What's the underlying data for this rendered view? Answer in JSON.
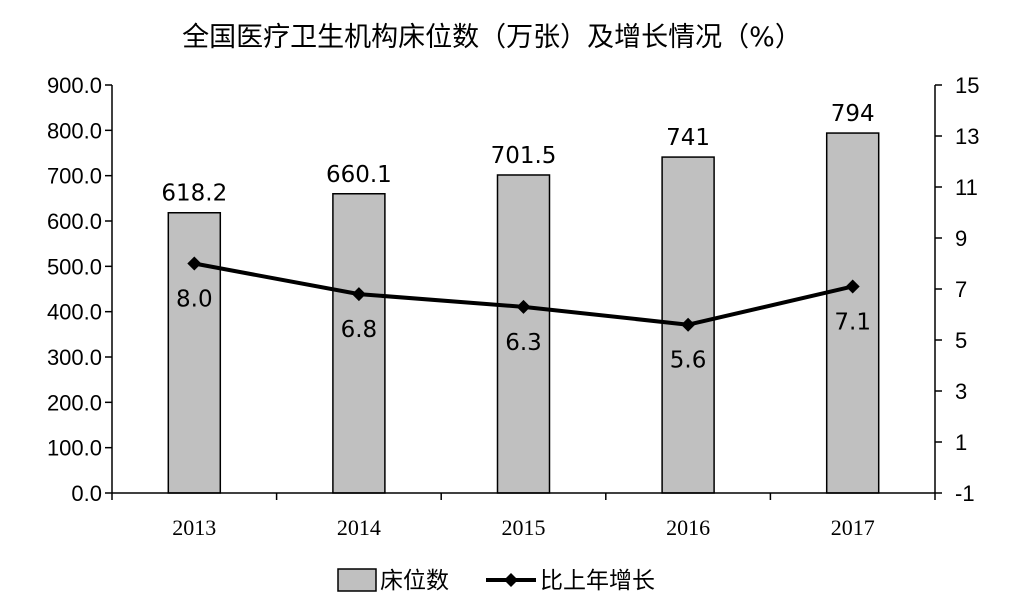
{
  "chart_data": {
    "type": "bar",
    "title": "全国医疗卫生机构床位数（万张）及增长情况（%）",
    "categories": [
      "2013",
      "2014",
      "2015",
      "2016",
      "2017"
    ],
    "series": [
      {
        "name": "床位数",
        "type": "bar",
        "axis": "left",
        "values": [
          618.2,
          660.1,
          701.5,
          741,
          794
        ],
        "labels": [
          "618.2",
          "660.1",
          "701.5",
          "741",
          "794"
        ],
        "color": "#c0c0c0"
      },
      {
        "name": "比上年增长",
        "type": "line",
        "axis": "right",
        "marker": "diamond",
        "values": [
          8.0,
          6.8,
          6.3,
          5.6,
          7.1
        ],
        "labels": [
          "8.0",
          "6.8",
          "6.3",
          "5.6",
          "7.1"
        ],
        "color": "#000000"
      }
    ],
    "y_left": {
      "ylim": [
        0,
        900
      ],
      "ticks": [
        "0.0",
        "100.0",
        "200.0",
        "300.0",
        "400.0",
        "500.0",
        "600.0",
        "700.0",
        "800.0",
        "900.0"
      ]
    },
    "y_right": {
      "ylim": [
        -1,
        15
      ],
      "ticks": [
        "-1",
        "1",
        "3",
        "5",
        "7",
        "9",
        "11",
        "13",
        "15"
      ]
    },
    "grid": false,
    "legend_position": "bottom"
  }
}
